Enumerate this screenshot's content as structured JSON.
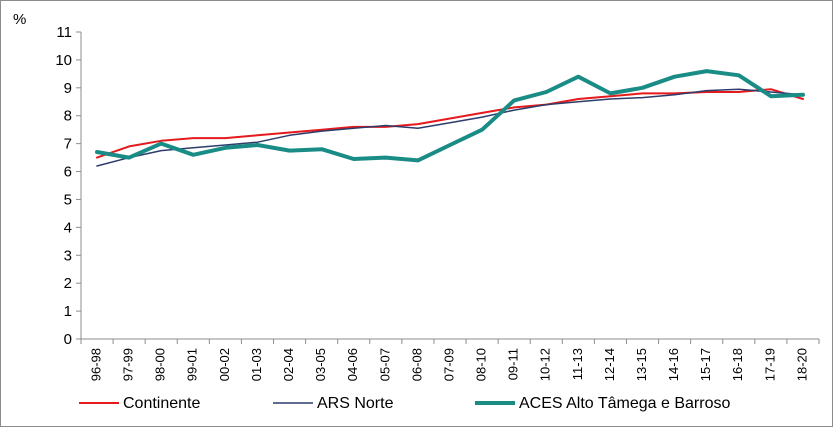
{
  "chart_data": {
    "type": "line",
    "ylabel": "%",
    "ylim": [
      0,
      11
    ],
    "yticks": [
      "0",
      "1",
      "2",
      "3",
      "4",
      "5",
      "6",
      "7",
      "8",
      "9",
      "10",
      "11"
    ],
    "categories": [
      "96-98",
      "97-99",
      "98-00",
      "99-01",
      "00-02",
      "01-03",
      "02-04",
      "03-05",
      "04-06",
      "05-07",
      "06-08",
      "07-09",
      "08-10",
      "09-11",
      "10-12",
      "11-13",
      "12-14",
      "13-15",
      "14-16",
      "15-17",
      "16-18",
      "17-19",
      "18-20"
    ],
    "grid": false,
    "legend_position": "bottom",
    "series": [
      {
        "name": "Continente",
        "color": "#e41a1c",
        "values": [
          6.5,
          6.9,
          7.1,
          7.2,
          7.2,
          7.3,
          7.4,
          7.5,
          7.6,
          7.6,
          7.7,
          7.9,
          8.1,
          8.3,
          8.4,
          8.6,
          8.7,
          8.8,
          8.8,
          8.85,
          8.85,
          8.95,
          8.6
        ]
      },
      {
        "name": "ARS Norte",
        "color": "#2c3d6b",
        "values": [
          6.2,
          6.5,
          6.75,
          6.85,
          6.95,
          7.05,
          7.3,
          7.45,
          7.55,
          7.65,
          7.55,
          7.75,
          7.95,
          8.2,
          8.4,
          8.5,
          8.6,
          8.65,
          8.75,
          8.9,
          8.95,
          8.85,
          8.75
        ]
      },
      {
        "name": "ACES Alto Tâmega e Barroso",
        "color": "#1a8c86",
        "values": [
          6.7,
          6.5,
          7.0,
          6.6,
          6.85,
          6.95,
          6.75,
          6.8,
          6.45,
          6.5,
          6.4,
          6.95,
          7.5,
          8.55,
          8.85,
          9.4,
          8.8,
          9.0,
          9.4,
          9.6,
          9.45,
          8.7,
          8.75
        ]
      }
    ]
  }
}
